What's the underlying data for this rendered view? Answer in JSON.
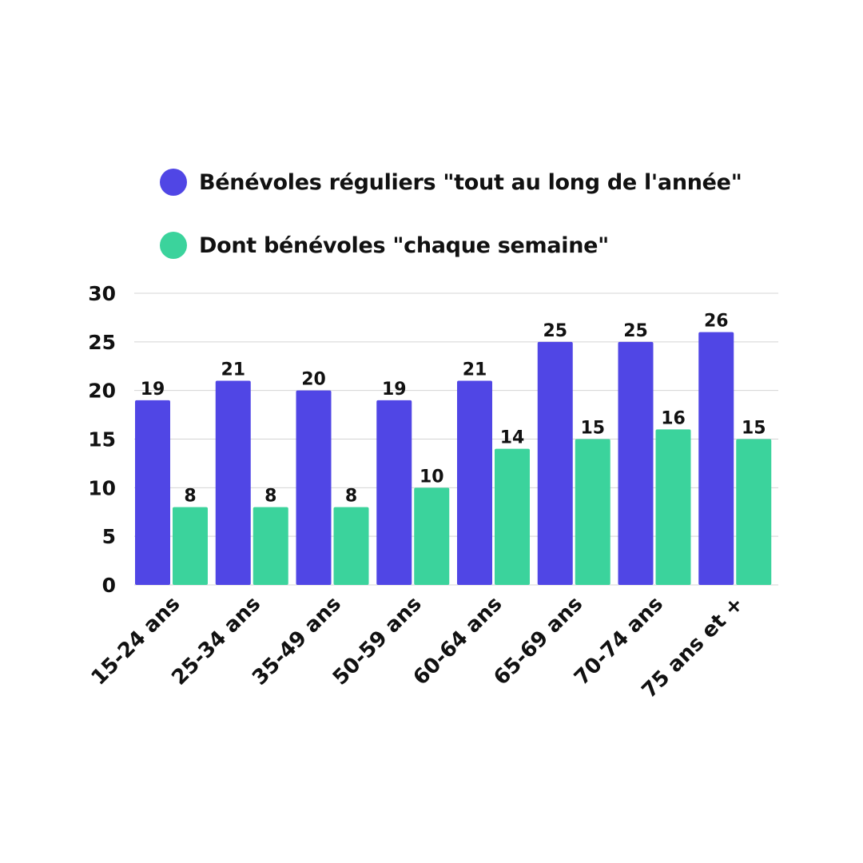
{
  "chart_data": {
    "type": "bar",
    "categories": [
      "15-24 ans",
      "25-34 ans",
      "35-49 ans",
      "50-59 ans",
      "60-64 ans",
      "65-69 ans",
      "70-74 ans",
      "75 ans et +"
    ],
    "series": [
      {
        "name": "Bénévoles réguliers \"tout au long de l'année\"",
        "color": "#5046E5",
        "values": [
          19,
          21,
          20,
          19,
          21,
          25,
          25,
          26
        ]
      },
      {
        "name": "Dont bénévoles \"chaque semaine\"",
        "color": "#3BD39C",
        "values": [
          8,
          8,
          8,
          10,
          14,
          15,
          16,
          15
        ]
      }
    ],
    "yticks": [
      "0",
      "5",
      "10",
      "15",
      "20",
      "25",
      "30"
    ],
    "ylim": [
      0,
      30
    ],
    "grid": true,
    "legend_position": "top",
    "data_labels": true
  }
}
